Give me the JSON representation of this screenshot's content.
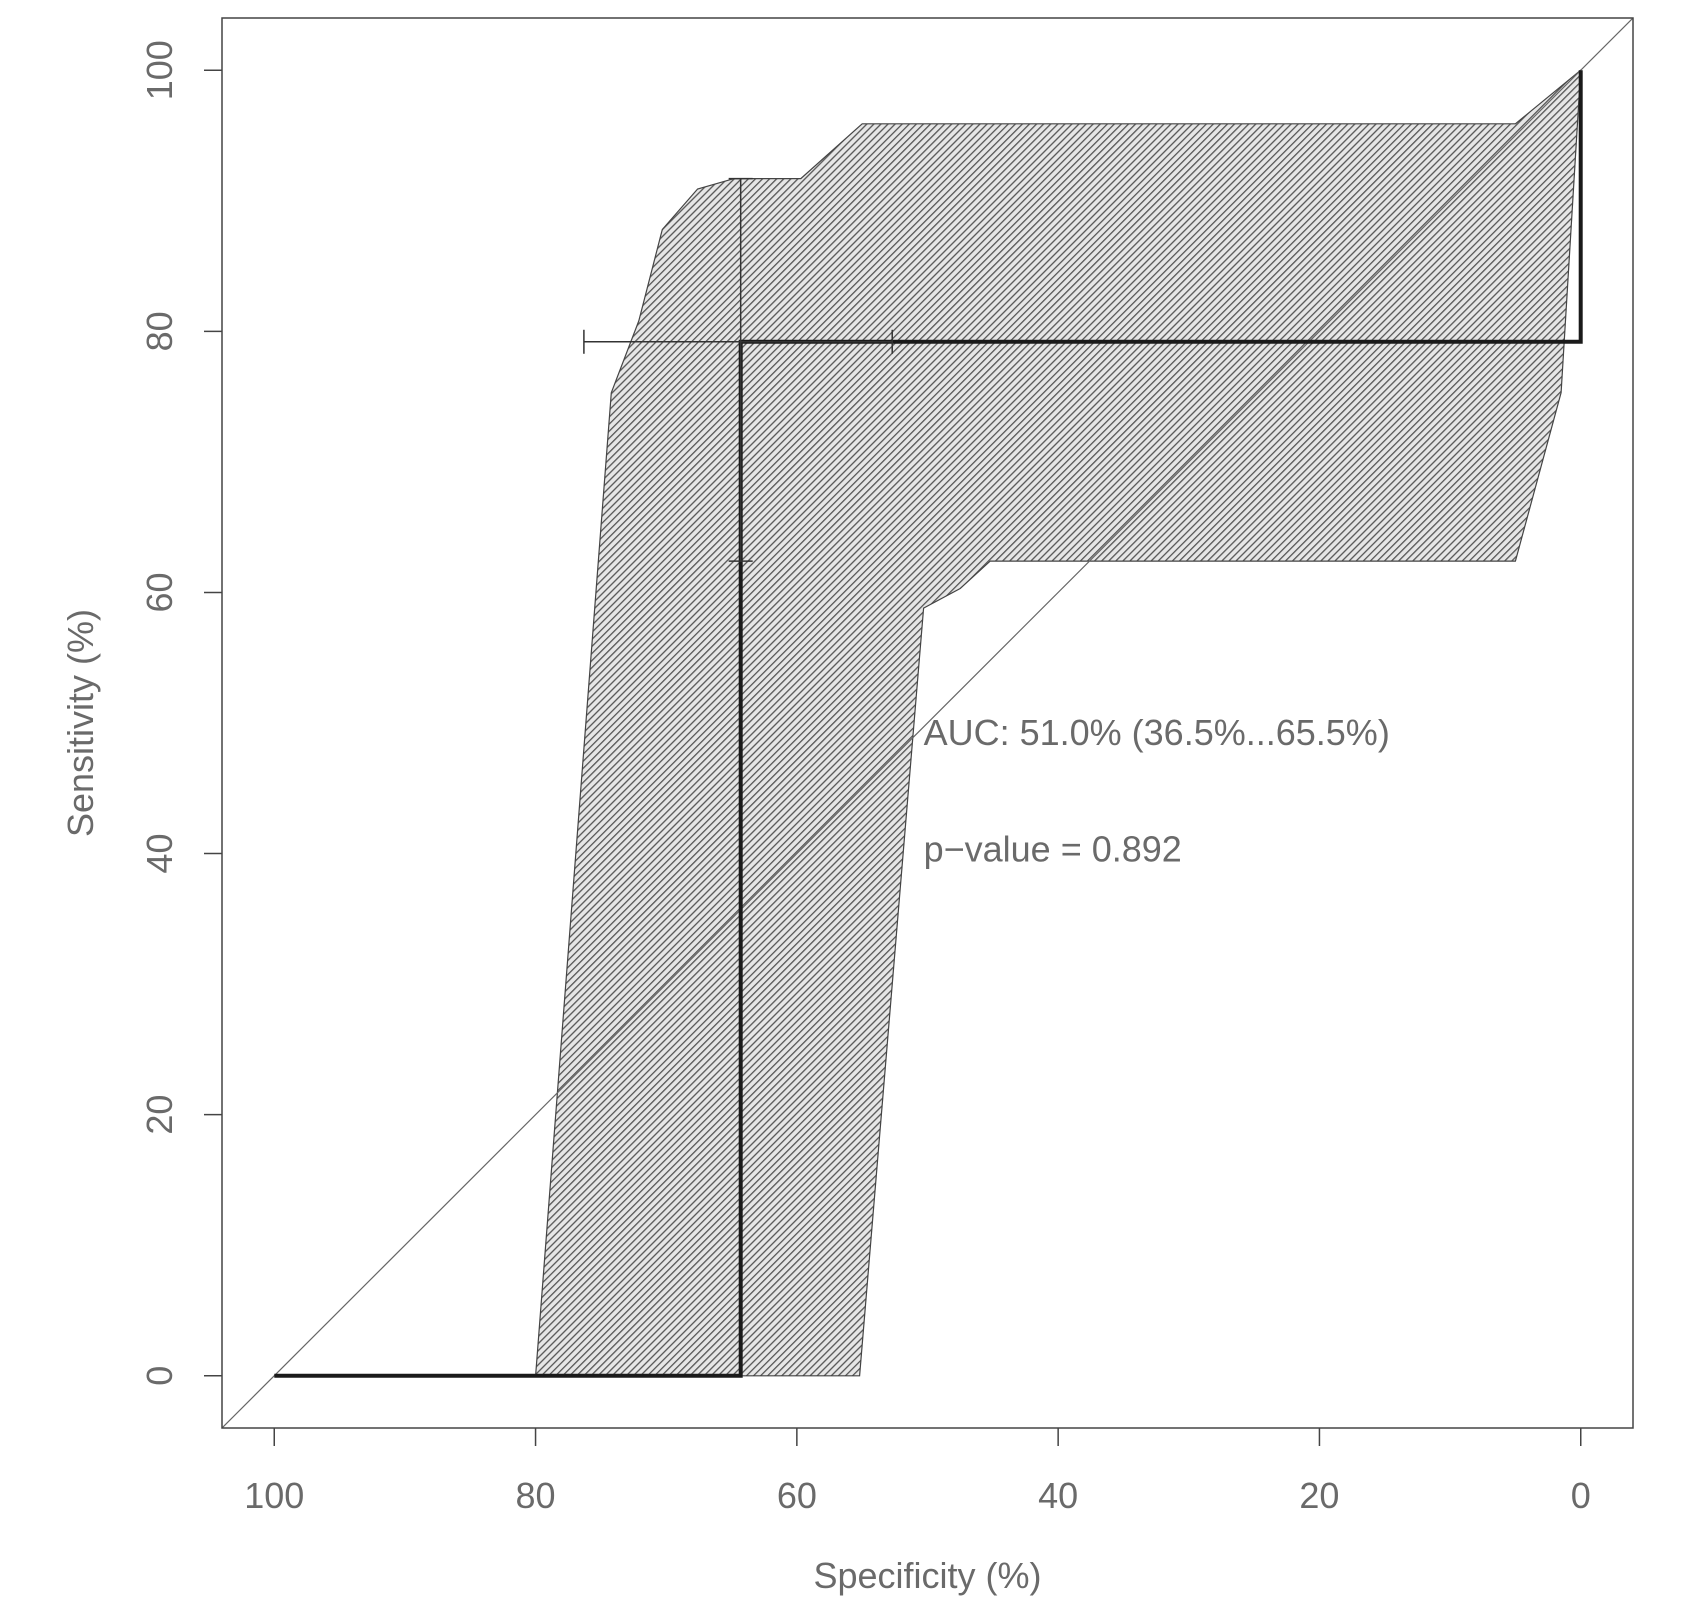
{
  "chart_data": {
    "type": "line",
    "title": "",
    "xlabel": "Specificity (%)",
    "ylabel": "Sensitivity (%)",
    "x_reversed": true,
    "xlim": [
      104,
      -4
    ],
    "ylim": [
      -4,
      104
    ],
    "xticks": [
      100,
      80,
      60,
      40,
      20,
      0
    ],
    "yticks": [
      0,
      20,
      40,
      60,
      80,
      100
    ],
    "xtick_labels": [
      "100",
      "80",
      "60",
      "40",
      "20",
      "0"
    ],
    "ytick_labels": [
      "0",
      "20",
      "40",
      "60",
      "80",
      "100"
    ],
    "grid": false,
    "roc_curve": {
      "x": [
        100,
        64.3,
        64.3,
        0,
        0
      ],
      "y": [
        0,
        0,
        79.2,
        79.2,
        100
      ]
    },
    "confidence_band": {
      "outer": {
        "x": [
          80,
          74.2,
          72.1,
          70.3,
          67.6,
          64.8,
          59.7,
          55,
          5,
          0
        ],
        "y": [
          0,
          75.3,
          80.8,
          87.8,
          90.9,
          91.7,
          91.7,
          95.9,
          95.9,
          100
        ]
      },
      "inner": {
        "x": [
          0,
          1.5,
          5,
          45.2,
          47.5,
          50.3,
          55.2
        ],
        "y": [
          100,
          75.3,
          62.4,
          62.4,
          60.3,
          58.8,
          0
        ]
      }
    },
    "reference_line": {
      "x": [
        100,
        0
      ],
      "y": [
        0,
        100
      ]
    },
    "ci_specificity": {
      "y": 79.2,
      "x_low": 52.7,
      "x_high": 76.3
    },
    "ci_sensitivity": {
      "x": 64.3,
      "y_low": 62.4,
      "y_high": 91.7
    },
    "annotations": [
      {
        "text": "AUC: 51.0% (36.5%...65.5%)",
        "x": 50.3,
        "y": 48.3
      },
      {
        "text": "p−value = 0.892",
        "x": 50.3,
        "y": 39.4
      }
    ],
    "colors": {
      "band": "#555555",
      "curve": "#1a1a1a",
      "frame": "#444444",
      "text": "#6a6a6a"
    }
  }
}
